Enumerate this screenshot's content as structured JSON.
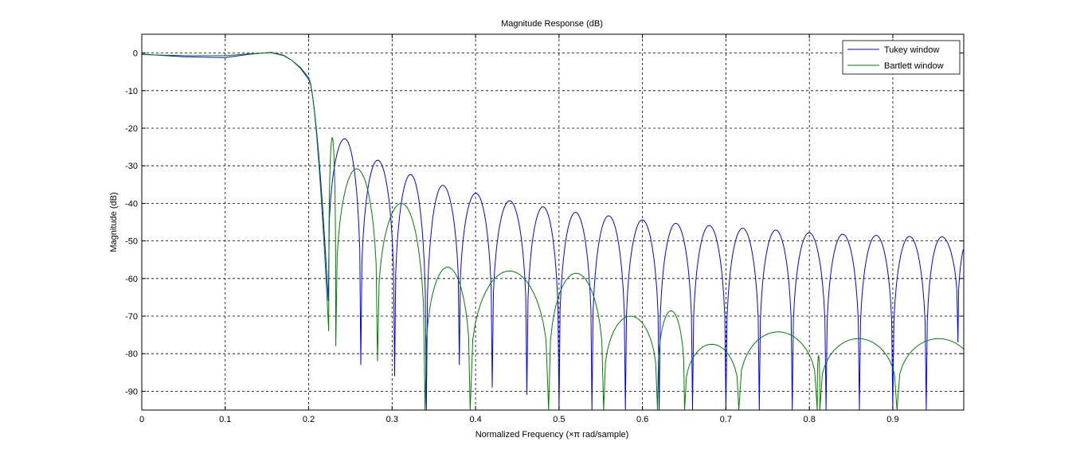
{
  "chart_data": {
    "type": "line",
    "title": "Magnitude Response (dB)",
    "xlabel": "Normalized Frequency (×π rad/sample)",
    "ylabel": "Magnitude (dB)",
    "xlim": [
      0,
      0.985
    ],
    "ylim": [
      -95,
      5
    ],
    "xticks": [
      0,
      0.1,
      0.2,
      0.3,
      0.4,
      0.5,
      0.6,
      0.7,
      0.8,
      0.9
    ],
    "xtick_labels": [
      "0",
      "0.1",
      "0.2",
      "0.3",
      "0.4",
      "0.5",
      "0.6",
      "0.7",
      "0.8",
      "0.9"
    ],
    "yticks": [
      0,
      -10,
      -20,
      -30,
      -40,
      -50,
      -60,
      -70,
      -80,
      -90
    ],
    "ytick_labels": [
      "0",
      "-10",
      "-20",
      "-30",
      "-40",
      "-50",
      "-60",
      "-70",
      "-80",
      "-90"
    ],
    "grid": true,
    "legend_position": "top-right",
    "series": [
      {
        "name": "Tukey window",
        "color": "#0000ff",
        "passband": [
          [
            0,
            -0.3
          ],
          [
            0.05,
            -1.0
          ],
          [
            0.1,
            -1.2
          ],
          [
            0.13,
            -0.3
          ],
          [
            0.155,
            0.2
          ],
          [
            0.17,
            -0.6
          ],
          [
            0.18,
            -2.0
          ],
          [
            0.19,
            -4.0
          ],
          [
            0.2,
            -7.0
          ]
        ],
        "zeros": [
          0.2235,
          0.2625,
          0.303,
          0.341,
          0.3805,
          0.42,
          0.4615,
          0.5,
          0.5395,
          0.5795,
          0.62,
          0.66,
          0.7,
          0.74,
          0.7795,
          0.82,
          0.86,
          0.9,
          0.94,
          0.978
        ],
        "zero_depths": [
          -66,
          -83,
          -86,
          -95,
          -83,
          -89,
          -91,
          -95,
          -95,
          -95,
          -95,
          -95,
          -95,
          -95,
          -95,
          -95,
          -95,
          -95,
          -95,
          -77
        ],
        "lobe_peaks": [
          -22.8,
          -28.5,
          -32.3,
          -35.2,
          -37.3,
          -39.3,
          -40.9,
          -42.4,
          -43.3,
          -44.4,
          -45.3,
          -45.9,
          -46.6,
          -47.1,
          -47.8,
          -48.2,
          -48.5,
          -48.8,
          -48.9,
          -48.6
        ]
      },
      {
        "name": "Bartlett window",
        "color": "#008000",
        "passband": [
          [
            0,
            -0.4
          ],
          [
            0.05,
            -0.7
          ],
          [
            0.1,
            -0.7
          ],
          [
            0.13,
            -0.2
          ],
          [
            0.155,
            0.1
          ],
          [
            0.17,
            -0.7
          ],
          [
            0.18,
            -2.0
          ],
          [
            0.19,
            -3.8
          ],
          [
            0.2,
            -6.5
          ]
        ],
        "zeros": [
          0.224,
          0.2325,
          0.2825,
          0.3395,
          0.3935,
          0.4875,
          0.5535,
          0.618,
          0.6505,
          0.7155,
          0.8095,
          0.8125,
          0.905
        ],
        "zero_depths": [
          -74,
          -78,
          -82,
          -95,
          -95,
          -95,
          -95,
          -95,
          -95,
          -95,
          -95,
          -95,
          -95
        ],
        "lobe_peaks": [
          -22.5,
          -30.8,
          -40.0,
          -57.0,
          -58.0,
          -58.6,
          -70.0,
          -68.6,
          -77.5,
          -74.2,
          -80.5,
          -76.0
        ]
      }
    ]
  }
}
